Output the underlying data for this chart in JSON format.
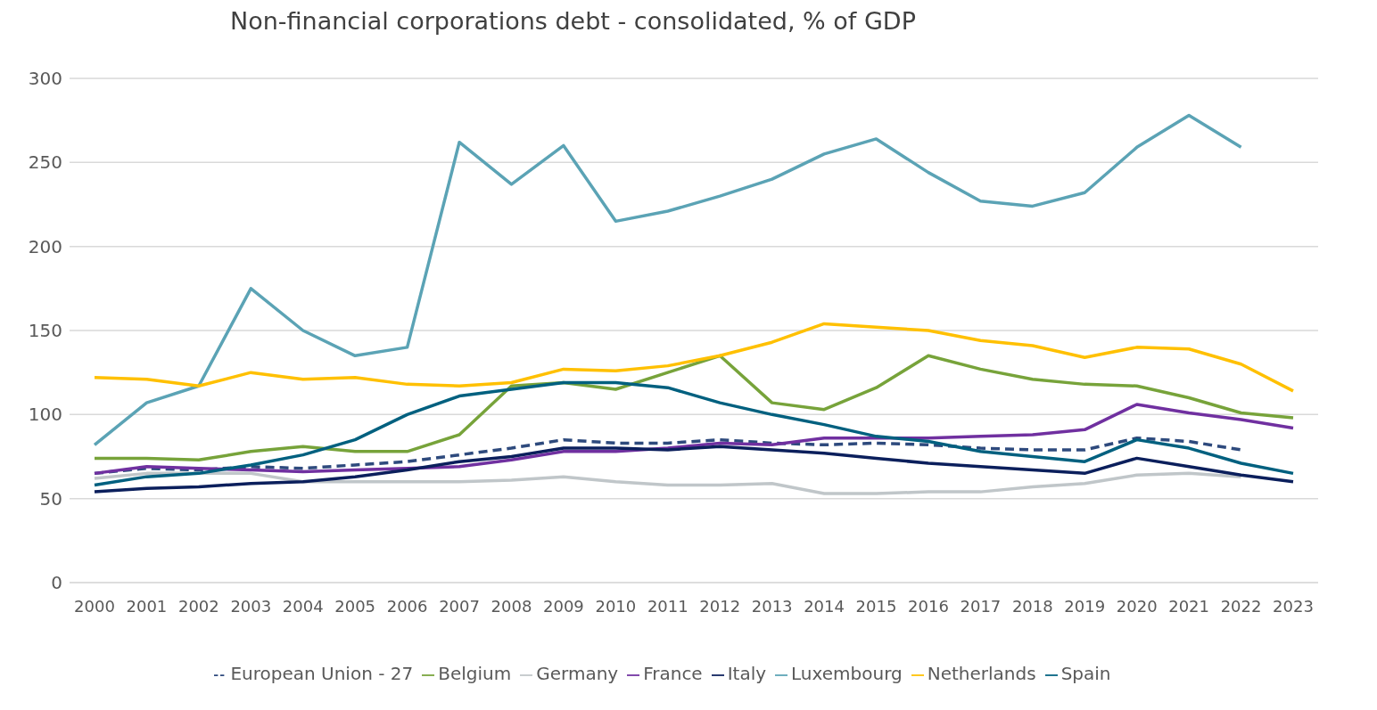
{
  "chart_data": {
    "type": "line",
    "title": "Non-financial corporations debt - consolidated,  % of GDP",
    "categories": [
      "2000",
      "2001",
      "2002",
      "2003",
      "2004",
      "2005",
      "2006",
      "2007",
      "2008",
      "2009",
      "2010",
      "2011",
      "2012",
      "2013",
      "2014",
      "2015",
      "2016",
      "2017",
      "2018",
      "2019",
      "2020",
      "2021",
      "2022",
      "2023"
    ],
    "ylim": [
      0,
      300
    ],
    "yticks": [
      0,
      50,
      100,
      150,
      200,
      250,
      300
    ],
    "grid": "y",
    "legend": "bottom",
    "marker": "none",
    "series": [
      {
        "name": "European Union - 27",
        "color": "#2e4a7d",
        "line_style": "dashed",
        "values": [
          65,
          68,
          67,
          69,
          68,
          70,
          72,
          76,
          80,
          85,
          83,
          83,
          85,
          83,
          82,
          83,
          82,
          80,
          79,
          79,
          86,
          84,
          79,
          null
        ]
      },
      {
        "name": "Belgium",
        "color": "#77a33a",
        "values": [
          74,
          74,
          73,
          78,
          81,
          78,
          78,
          88,
          117,
          119,
          115,
          125,
          135,
          107,
          103,
          116,
          135,
          127,
          121,
          118,
          117,
          110,
          101,
          98
        ]
      },
      {
        "name": "Germany",
        "color": "#c0c6c9",
        "values": [
          62,
          65,
          65,
          65,
          60,
          60,
          60,
          60,
          61,
          63,
          60,
          58,
          58,
          59,
          53,
          53,
          54,
          54,
          57,
          59,
          64,
          65,
          63,
          null
        ]
      },
      {
        "name": "France",
        "color": "#7030a0",
        "values": [
          65,
          69,
          68,
          67,
          66,
          67,
          68,
          69,
          73,
          78,
          78,
          80,
          83,
          82,
          86,
          86,
          86,
          87,
          88,
          91,
          106,
          101,
          97,
          92
        ]
      },
      {
        "name": "Italy",
        "color": "#0b1f5c",
        "values": [
          54,
          56,
          57,
          59,
          60,
          63,
          67,
          72,
          75,
          80,
          80,
          79,
          81,
          79,
          77,
          74,
          71,
          69,
          67,
          65,
          74,
          69,
          64,
          60
        ]
      },
      {
        "name": "Luxembourg",
        "color": "#5ba3b5",
        "values": [
          82,
          107,
          117,
          175,
          150,
          135,
          140,
          262,
          237,
          260,
          215,
          221,
          230,
          240,
          255,
          264,
          244,
          227,
          224,
          232,
          259,
          278,
          259,
          null
        ]
      },
      {
        "name": "Netherlands",
        "color": "#ffc000",
        "values": [
          122,
          121,
          117,
          125,
          121,
          122,
          118,
          117,
          119,
          127,
          126,
          129,
          135,
          143,
          154,
          152,
          150,
          144,
          141,
          134,
          140,
          139,
          130,
          114
        ]
      },
      {
        "name": "Spain",
        "color": "#00607f",
        "values": [
          58,
          63,
          65,
          70,
          76,
          85,
          100,
          111,
          115,
          119,
          119,
          116,
          107,
          100,
          94,
          87,
          84,
          78,
          75,
          72,
          85,
          80,
          71,
          65
        ]
      }
    ]
  }
}
